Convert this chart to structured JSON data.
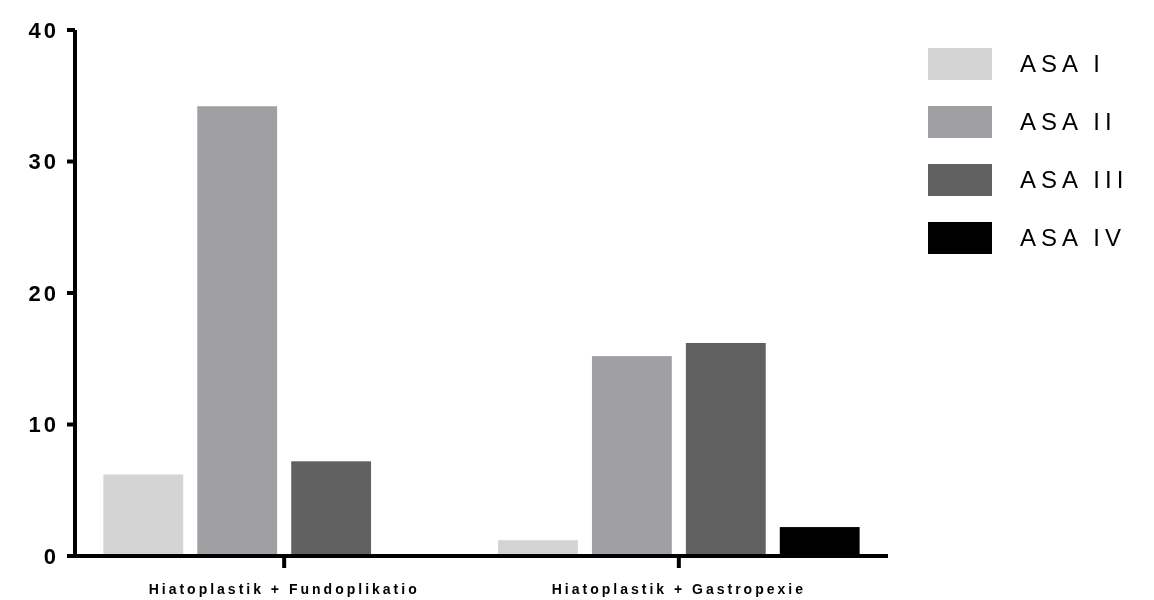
{
  "chart_data": {
    "type": "bar",
    "categories": [
      "Hiatoplastik + Fundoplikatio",
      "Hiatoplastik + Gastropexie"
    ],
    "series": [
      {
        "name": "ASA I",
        "color": "#d4d4d4",
        "values": [
          6.2,
          1.2
        ]
      },
      {
        "name": "ASA II",
        "color": "#a09fa4",
        "values": [
          34.2,
          15.2
        ]
      },
      {
        "name": "ASA III",
        "color": "#616161",
        "values": [
          7.2,
          16.2
        ]
      },
      {
        "name": "ASA IV",
        "color": "#000000",
        "values": [
          0,
          2.2
        ]
      }
    ],
    "ylim": [
      0,
      40
    ],
    "yticks": [
      0,
      10,
      20,
      30,
      40
    ],
    "legend": "right",
    "grid": false
  }
}
